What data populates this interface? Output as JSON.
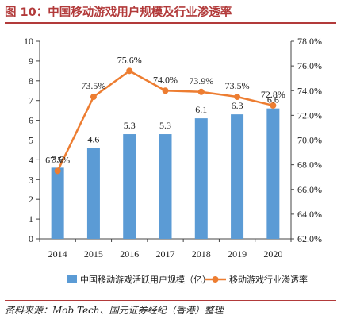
{
  "header": {
    "title": "图 10：中国移动游戏用户规模及行业渗透率"
  },
  "source": "资料来源：Mob Tech、国元证券经纪（香港）整理",
  "chart_data": {
    "type": "bar",
    "categories": [
      "2014",
      "2015",
      "2016",
      "2017",
      "2018",
      "2019",
      "2020"
    ],
    "series": [
      {
        "name": "中国移动游戏活跃用户规模（亿）",
        "type": "bar",
        "axis": "left",
        "values": [
          3.6,
          4.6,
          5.3,
          5.3,
          6.1,
          6.3,
          6.6
        ],
        "labels": [
          "3.6",
          "4.6",
          "5.3",
          "5.3",
          "6.1",
          "6.3",
          "6.6"
        ]
      },
      {
        "name": "移动游戏行业渗透率",
        "type": "line",
        "axis": "right",
        "values": [
          67.5,
          73.5,
          75.6,
          74.0,
          73.9,
          73.5,
          72.8
        ],
        "labels": [
          "67.5%",
          "73.5%",
          "75.6%",
          "74.0%",
          "73.9%",
          "73.5%",
          "72.8%"
        ]
      }
    ],
    "y_left": {
      "min": 0,
      "max": 10,
      "ticks": [
        "0",
        "1",
        "2",
        "3",
        "4",
        "5",
        "6",
        "7",
        "8",
        "9",
        "10"
      ]
    },
    "y_right": {
      "min": 62,
      "max": 78,
      "ticks": [
        "62.0%",
        "64.0%",
        "66.0%",
        "68.0%",
        "70.0%",
        "72.0%",
        "74.0%",
        "76.0%",
        "78.0%"
      ]
    },
    "colors": {
      "bar": "#5b9bd5",
      "line": "#ed7d31"
    },
    "grid": false,
    "legend": "bottom"
  }
}
